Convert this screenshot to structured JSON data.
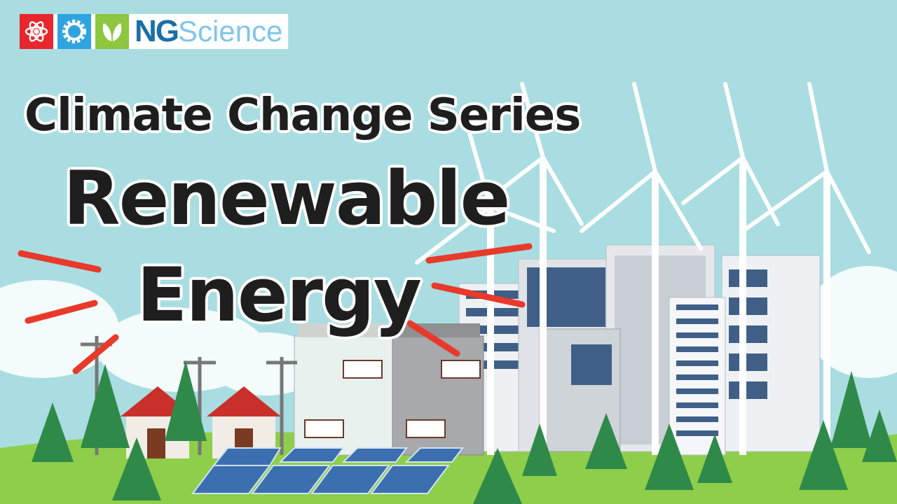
{
  "logo": {
    "text_ng": "NG",
    "text_science": "Science",
    "colors": [
      "#e8262d",
      "#2ea3e0",
      "#8dc63f"
    ]
  },
  "title": {
    "series": "Climate Change Series",
    "line1": "Renewable",
    "line2": "Energy"
  },
  "colors": {
    "sky": "#a9dde1",
    "grass": "#8fce4a",
    "accent_stroke": "#e8392b"
  }
}
